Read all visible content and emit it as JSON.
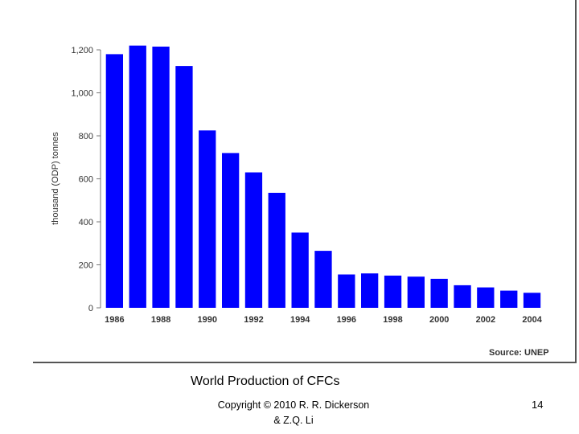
{
  "chart_data": {
    "type": "bar",
    "title": "World Production of CFCs",
    "ylabel": "thousand (ODP) tonnes",
    "xlabel": "",
    "ylim": [
      0,
      1200
    ],
    "y_ticks": [
      "0",
      "200",
      "400",
      "600",
      "800",
      "1,000",
      "1,200"
    ],
    "y_tick_values": [
      0,
      200,
      400,
      600,
      800,
      1000,
      1200
    ],
    "x_tick_labels": [
      "1986",
      "1988",
      "1990",
      "1992",
      "1994",
      "1996",
      "1998",
      "2000",
      "2002",
      "2004"
    ],
    "categories": [
      "1986",
      "1987",
      "1988",
      "1989",
      "1990",
      "1991",
      "1992",
      "1993",
      "1994",
      "1995",
      "1996",
      "1997",
      "1998",
      "1999",
      "2000",
      "2001",
      "2002",
      "2003",
      "2004"
    ],
    "values": [
      1180,
      1220,
      1215,
      1125,
      825,
      720,
      630,
      535,
      350,
      265,
      155,
      160,
      150,
      145,
      135,
      105,
      95,
      80,
      70
    ],
    "bar_color": "#0000ff",
    "grid": false,
    "source": "Source: UNEP"
  },
  "slide": {
    "caption": "World Production of CFCs",
    "copyright": "Copyright © 2010 R. R. Dickerson & Z.Q. Li",
    "page_number": "14"
  }
}
